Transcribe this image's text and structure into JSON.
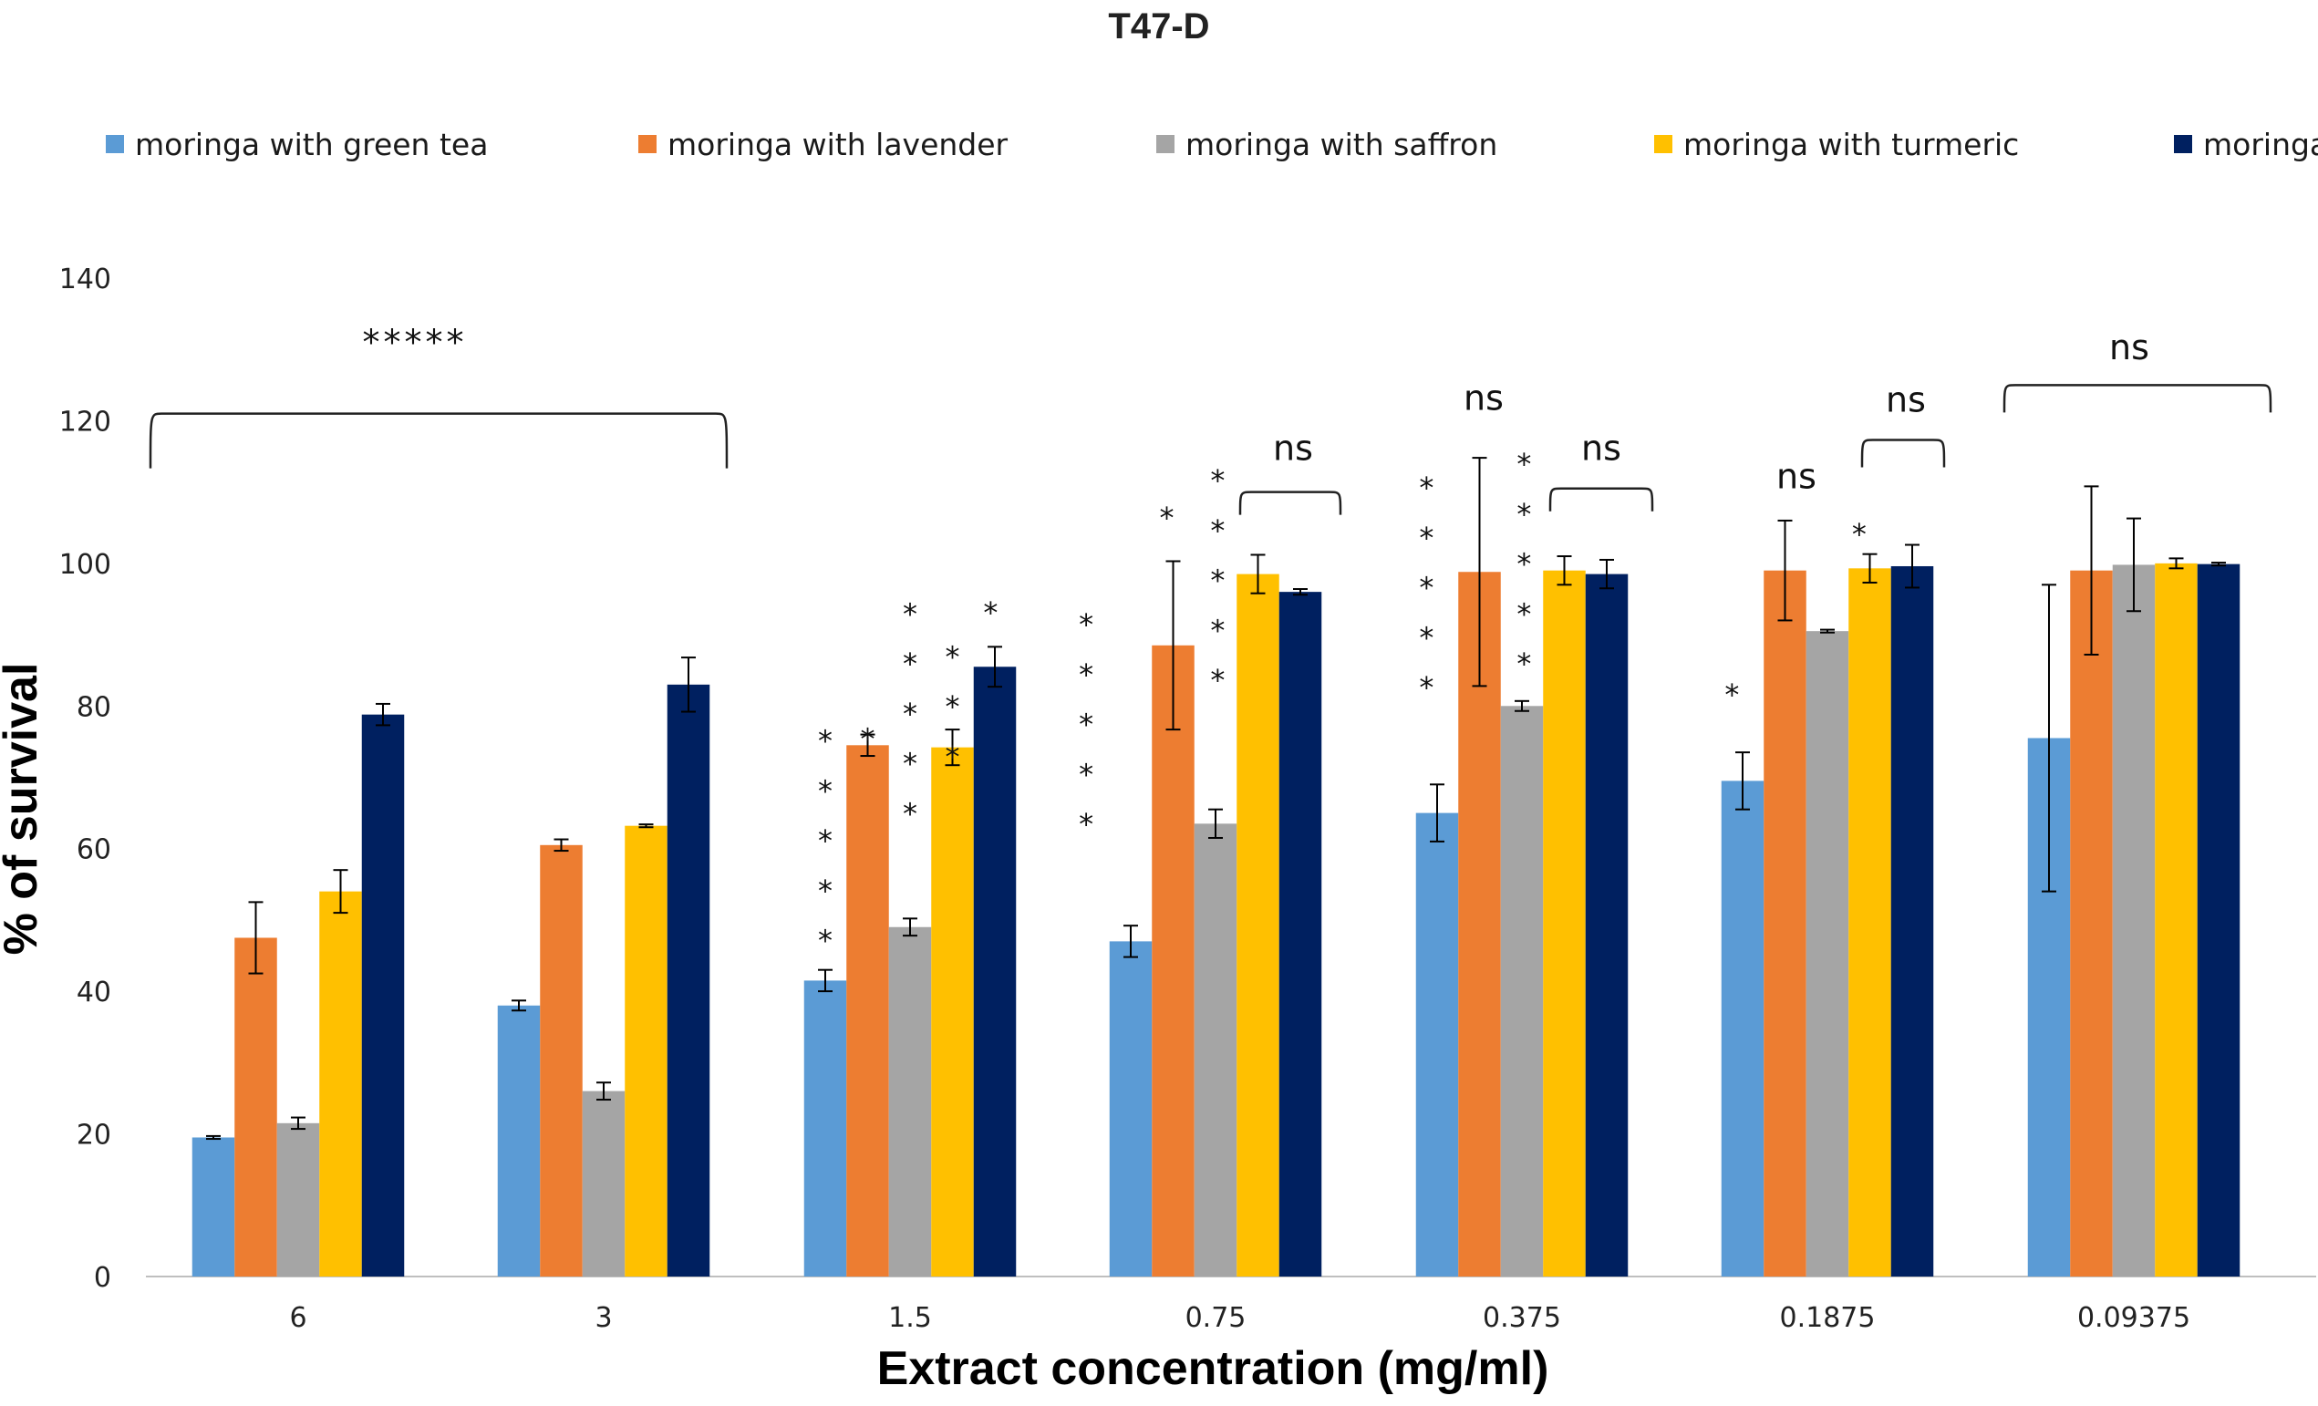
{
  "chart_data": {
    "type": "bar",
    "title": "T47-D",
    "xlabel": "Extract concentration (mg/ml)",
    "ylabel": "% of survival",
    "ylim": [
      0,
      140
    ],
    "yticks": [
      0,
      20,
      40,
      60,
      80,
      100,
      120,
      140
    ],
    "grid": false,
    "legend_position": "top",
    "categories": [
      "6",
      "3",
      "1.5",
      "0.75",
      "0.375",
      "0.1875",
      "0.09375"
    ],
    "series": [
      {
        "name": "moringa with green tea",
        "color": "#5B9BD5",
        "values": [
          19.5,
          38,
          41.5,
          47,
          65,
          69.5,
          75.5
        ],
        "errors": [
          0.2,
          0.7,
          1.5,
          2.2,
          4,
          4,
          21.5
        ]
      },
      {
        "name": "moringa with lavender",
        "color": "#ED7D31",
        "values": [
          47.5,
          60.5,
          74.5,
          88.5,
          98.8,
          99,
          99
        ],
        "errors": [
          5,
          0.8,
          1.5,
          11.8,
          16,
          7,
          11.8
        ]
      },
      {
        "name": "moringa with saffron",
        "color": "#A5A5A5",
        "values": [
          21.5,
          26,
          49,
          63.5,
          80,
          90.5,
          99.8
        ],
        "errors": [
          0.8,
          1.2,
          1.2,
          2,
          0.7,
          0.2,
          6.5
        ]
      },
      {
        "name": "moringa with turmeric",
        "color": "#FFC000",
        "values": [
          54,
          63.2,
          74.2,
          98.5,
          99,
          99.3,
          100
        ],
        "errors": [
          3,
          0.2,
          2.5,
          2.7,
          2,
          2,
          0.7
        ]
      },
      {
        "name": "moringa",
        "color": "#002060",
        "values": [
          78.8,
          83,
          85.5,
          96,
          98.5,
          99.6,
          99.9
        ],
        "errors": [
          1.5,
          3.8,
          2.8,
          0.4,
          2,
          3,
          0.2
        ]
      }
    ]
  },
  "annotations": {
    "bracket_1_label": "*****",
    "bracket_2_label": "ns",
    "bracket_3_label": "ns",
    "bracket_4_label": "ns",
    "bracket_5_label": "ns",
    "ns_lavender_0375": "ns",
    "ns_lavender_01875": "ns",
    "star_single": "*",
    "stacked_star_columns": [
      {
        "id": "c15_green",
        "text": "*****",
        "x_group": 2,
        "x_series": 0.5,
        "y_top": 76.5
      },
      {
        "id": "c15_lav",
        "text": "*",
        "x_group": 2,
        "x_series": 1.5,
        "y_top": 76.8
      },
      {
        "id": "c15_saf",
        "text": "*****",
        "x_group": 2,
        "x_series": 2.5,
        "y_top": 94.3
      },
      {
        "id": "c15_tur",
        "text": "***",
        "x_group": 2,
        "x_series": 3.5,
        "y_top": 88.3
      },
      {
        "id": "c15_mor",
        "text": "*",
        "x_group": 2,
        "x_series": 4.4,
        "y_top": 94.5
      },
      {
        "id": "c075_green",
        "text": "*****",
        "x_group": 3,
        "x_series": -0.55,
        "y_top": 92.8
      },
      {
        "id": "c075_lav",
        "text": "*",
        "x_group": 3,
        "x_series": 1.35,
        "y_top": 107.8
      },
      {
        "id": "c075_saf",
        "text": "*****",
        "x_group": 3,
        "x_series": 2.55,
        "y_top": 113
      },
      {
        "id": "c0375_green",
        "text": "*****",
        "x_group": 4,
        "x_series": 0.25,
        "y_top": 112
      },
      {
        "id": "c0375_saf",
        "text": "*****",
        "x_group": 4,
        "x_series": 2.55,
        "y_top": 115.3
      },
      {
        "id": "c01875_green",
        "text": "*",
        "x_group": 5,
        "x_series": 0.25,
        "y_top": 83
      },
      {
        "id": "c01875_saf",
        "text": "*",
        "x_group": 5,
        "x_series": 3.25,
        "y_top": 105.5
      }
    ]
  }
}
